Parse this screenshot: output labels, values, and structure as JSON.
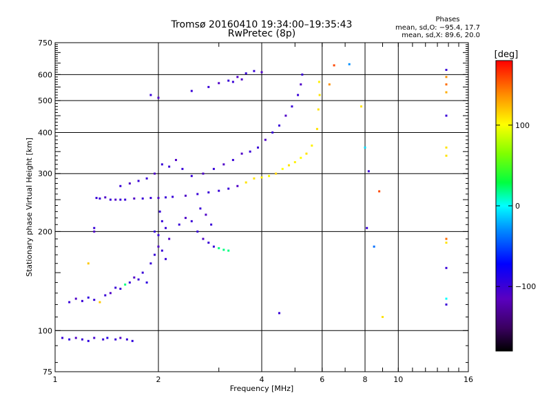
{
  "chart_data": {
    "type": "scatter",
    "title": "Tromsø 20160410 19:34:00–19:35:43",
    "subtitle": "RwPretec (8p)",
    "info": {
      "heading": "Phases",
      "line1": "mean, sd,O: −95.4, 17.7",
      "line2": "mean, sd,X:  89.6, 20.0"
    },
    "xlabel": "Frequency [MHz]",
    "ylabel": "Stationary phase Virtual Height [km]",
    "x_scale": "log",
    "y_scale": "log",
    "xlim": [
      1,
      16
    ],
    "ylim": [
      75,
      750
    ],
    "grid": true,
    "xticks": [
      1,
      2,
      4,
      6,
      8,
      10,
      16
    ],
    "xtick_labels": [
      "1",
      "2",
      "4",
      "6",
      "8",
      "10",
      "16"
    ],
    "yticks": [
      75,
      100,
      200,
      300,
      400,
      500,
      600,
      750
    ],
    "ytick_labels": [
      "75",
      "100",
      "200",
      "300",
      "400",
      "500",
      "600",
      "750"
    ],
    "colorbar": {
      "label": "[deg]",
      "range": [
        -180,
        180
      ],
      "ticks": [
        -100,
        0,
        100
      ],
      "tick_labels": [
        "−100",
        "0",
        "100"
      ],
      "colormap": "rainbow: black → purple → blue → cyan → green → yellow → orange → red"
    },
    "series": [
      {
        "type": "points",
        "points": [
          [
            1.05,
            95,
            -100
          ],
          [
            1.1,
            94,
            -95
          ],
          [
            1.15,
            95,
            -110
          ],
          [
            1.2,
            94,
            -100
          ],
          [
            1.25,
            93,
            -95
          ],
          [
            1.3,
            95,
            -105
          ],
          [
            1.38,
            94,
            -100
          ],
          [
            1.42,
            95,
            -90
          ],
          [
            1.5,
            94,
            -100
          ],
          [
            1.55,
            95,
            -110
          ],
          [
            1.62,
            94,
            -100
          ],
          [
            1.68,
            93,
            -95
          ],
          [
            1.1,
            122,
            -100
          ],
          [
            1.15,
            125,
            -110
          ],
          [
            1.2,
            123,
            -100
          ],
          [
            1.25,
            126,
            -95
          ],
          [
            1.3,
            124,
            -100
          ],
          [
            1.35,
            122,
            120
          ],
          [
            1.4,
            128,
            -100
          ],
          [
            1.45,
            130,
            -110
          ],
          [
            1.5,
            135,
            -100
          ],
          [
            1.55,
            134,
            -100
          ],
          [
            1.6,
            138,
            20
          ],
          [
            1.65,
            140,
            -100
          ],
          [
            1.7,
            145,
            -110
          ],
          [
            1.75,
            143,
            -100
          ],
          [
            1.8,
            150,
            -100
          ],
          [
            1.85,
            140,
            -95
          ],
          [
            1.9,
            160,
            -100
          ],
          [
            1.95,
            170,
            -100
          ],
          [
            2.0,
            180,
            -110
          ],
          [
            2.05,
            175,
            -100
          ],
          [
            2.1,
            165,
            -100
          ],
          [
            1.95,
            200,
            -100
          ],
          [
            2.05,
            215,
            -100
          ],
          [
            2.1,
            205,
            -100
          ],
          [
            2.15,
            190,
            -110
          ],
          [
            2.02,
            230,
            -100
          ],
          [
            2.0,
            195,
            -100
          ],
          [
            1.45,
            250,
            -100
          ],
          [
            1.5,
            250,
            -110
          ],
          [
            1.55,
            250,
            -100
          ],
          [
            1.6,
            250,
            -100
          ],
          [
            1.7,
            252,
            -110
          ],
          [
            1.8,
            252,
            -100
          ],
          [
            1.9,
            253,
            -100
          ],
          [
            2.0,
            253,
            -110
          ],
          [
            2.1,
            254,
            -100
          ],
          [
            2.2,
            255,
            -100
          ],
          [
            2.4,
            257,
            -110
          ],
          [
            2.6,
            260,
            -100
          ],
          [
            2.8,
            263,
            -100
          ],
          [
            3.0,
            266,
            -100
          ],
          [
            3.2,
            270,
            -100
          ],
          [
            3.4,
            275,
            -110
          ],
          [
            3.6,
            282,
            110
          ],
          [
            3.8,
            290,
            110
          ],
          [
            4.0,
            292,
            105
          ],
          [
            4.2,
            295,
            100
          ],
          [
            4.4,
            300,
            115
          ],
          [
            4.6,
            310,
            100
          ],
          [
            4.8,
            318,
            110
          ],
          [
            5.0,
            325,
            105
          ],
          [
            5.2,
            335,
            100
          ],
          [
            5.4,
            345,
            110
          ],
          [
            5.6,
            365,
            105
          ],
          [
            5.8,
            410,
            110
          ],
          [
            5.85,
            470,
            110
          ],
          [
            5.9,
            520,
            110
          ],
          [
            5.88,
            570,
            105
          ],
          [
            1.35,
            252,
            -100
          ],
          [
            1.4,
            254,
            -110
          ],
          [
            1.32,
            253,
            -100
          ],
          [
            1.55,
            275,
            -100
          ],
          [
            1.65,
            280,
            -110
          ],
          [
            1.75,
            285,
            -100
          ],
          [
            1.85,
            290,
            -100
          ],
          [
            1.95,
            300,
            -110
          ],
          [
            2.05,
            320,
            -100
          ],
          [
            2.15,
            315,
            -100
          ],
          [
            2.25,
            330,
            -110
          ],
          [
            2.35,
            310,
            -100
          ],
          [
            2.5,
            295,
            -100
          ],
          [
            2.7,
            300,
            -110
          ],
          [
            2.9,
            310,
            -100
          ],
          [
            3.1,
            320,
            -110
          ],
          [
            3.3,
            330,
            -100
          ],
          [
            3.5,
            345,
            -110
          ],
          [
            3.7,
            350,
            -100
          ],
          [
            3.9,
            360,
            -100
          ],
          [
            4.1,
            380,
            -110
          ],
          [
            4.3,
            400,
            -100
          ],
          [
            4.5,
            420,
            -100
          ],
          [
            4.7,
            450,
            -110
          ],
          [
            4.9,
            480,
            -100
          ],
          [
            5.1,
            520,
            -100
          ],
          [
            5.2,
            560,
            -110
          ],
          [
            5.25,
            600,
            -100
          ],
          [
            1.9,
            520,
            -100
          ],
          [
            2.0,
            510,
            -110
          ],
          [
            2.5,
            535,
            -100
          ],
          [
            2.8,
            550,
            -100
          ],
          [
            3.0,
            565,
            -110
          ],
          [
            3.2,
            575,
            -100
          ],
          [
            3.4,
            590,
            -110
          ],
          [
            3.6,
            605,
            -100
          ],
          [
            3.8,
            615,
            -100
          ],
          [
            4.0,
            610,
            -110
          ],
          [
            3.5,
            580,
            -110
          ],
          [
            3.3,
            570,
            -100
          ],
          [
            2.3,
            210,
            -100
          ],
          [
            2.4,
            220,
            -110
          ],
          [
            2.5,
            215,
            -100
          ],
          [
            2.6,
            200,
            -100
          ],
          [
            2.7,
            190,
            -110
          ],
          [
            2.8,
            185,
            -100
          ],
          [
            2.9,
            180,
            -100
          ],
          [
            3.0,
            178,
            20
          ],
          [
            3.1,
            176,
            20
          ],
          [
            3.2,
            175,
            20
          ],
          [
            2.65,
            235,
            -100
          ],
          [
            2.75,
            225,
            -110
          ],
          [
            2.85,
            210,
            -100
          ],
          [
            1.3,
            205,
            -100
          ],
          [
            1.3,
            200,
            -110
          ],
          [
            1.25,
            160,
            120
          ],
          [
            4.5,
            113,
            -100
          ],
          [
            6.3,
            560,
            140
          ],
          [
            6.5,
            640,
            160
          ],
          [
            7.2,
            645,
            -30
          ],
          [
            7.8,
            480,
            110
          ],
          [
            8.0,
            360,
            -10
          ],
          [
            8.2,
            305,
            -100
          ],
          [
            8.1,
            205,
            -100
          ],
          [
            8.5,
            180,
            -40
          ],
          [
            8.8,
            265,
            160
          ],
          [
            9.0,
            110,
            110
          ],
          [
            13.8,
            620,
            -100
          ],
          [
            13.8,
            590,
            140
          ],
          [
            13.8,
            560,
            150
          ],
          [
            13.8,
            530,
            130
          ],
          [
            13.8,
            450,
            -100
          ],
          [
            13.8,
            360,
            110
          ],
          [
            13.8,
            340,
            110
          ],
          [
            13.8,
            190,
            150
          ],
          [
            13.8,
            185,
            110
          ],
          [
            13.8,
            155,
            -100
          ],
          [
            13.8,
            125,
            0
          ],
          [
            13.8,
            120,
            -100
          ]
        ]
      }
    ]
  }
}
